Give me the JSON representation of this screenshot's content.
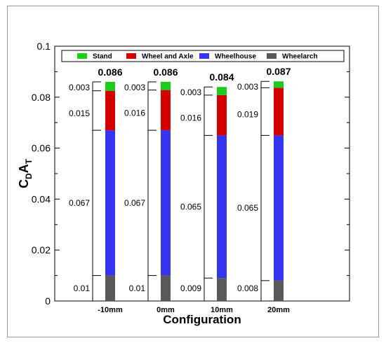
{
  "chart_data": {
    "type": "bar",
    "stacked": true,
    "title": "",
    "xlabel": "Configuration",
    "ylabel": {
      "main1": "C",
      "sub1": "D",
      "main2": "A",
      "sub2": "T"
    },
    "ylim": [
      0,
      0.1
    ],
    "yticks": [
      "0",
      "0.02",
      "0.04",
      "0.06",
      "0.08",
      "0.1"
    ],
    "categories": [
      "-10mm",
      "0mm",
      "10mm",
      "20mm"
    ],
    "series": [
      {
        "name": "Wheelarch",
        "color": "#595959",
        "values": [
          0.01,
          0.01,
          0.009,
          0.008
        ]
      },
      {
        "name": "Wheelhouse",
        "color": "#3535f0",
        "values": [
          0.057,
          0.057,
          0.056,
          0.057
        ]
      },
      {
        "name": "Wheel and Axle",
        "color": "#d40000",
        "values": [
          0.0155,
          0.0158,
          0.0158,
          0.0187
        ]
      },
      {
        "name": "Stand",
        "color": "#1ecc1e",
        "values": [
          0.0035,
          0.0032,
          0.0032,
          0.0025
        ]
      }
    ],
    "legend": {
      "placement": "top",
      "order": [
        "Stand",
        "Wheel and Axle",
        "Wheelhouse",
        "Wheelarch"
      ]
    },
    "totals": [
      "0.086",
      "0.086",
      "0.084",
      "0.087"
    ],
    "annotations": [
      {
        "values": [
          "0.01",
          "0.067",
          "0.015",
          "0.003"
        ]
      },
      {
        "values": [
          "0.01",
          "0.067",
          "0.016",
          "0.003"
        ]
      },
      {
        "values": [
          "0.009",
          "0.065",
          "0.016",
          "0.003"
        ]
      },
      {
        "values": [
          "0.008",
          "0.065",
          "0.019",
          "0.003"
        ]
      }
    ],
    "grid": false
  }
}
